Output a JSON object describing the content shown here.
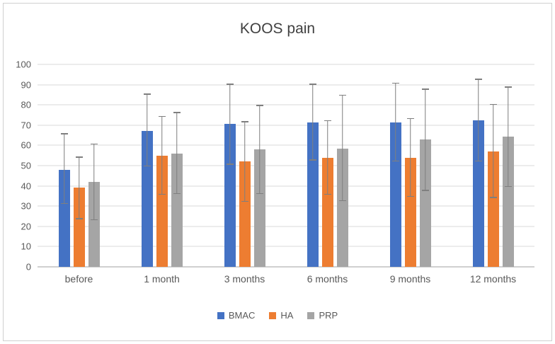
{
  "chart_data": {
    "type": "bar",
    "title": "KOOS pain",
    "xlabel": "",
    "ylabel": "",
    "categories": [
      "before",
      "1 month",
      "3 months",
      "6 months",
      "9 months",
      "12 months"
    ],
    "series": [
      {
        "name": "BMAC",
        "color": "#4472C4",
        "values": [
          48,
          67,
          70.5,
          71.5,
          71.5,
          72.5
        ],
        "error_low": [
          31,
          49.5,
          50.5,
          52.5,
          52,
          52
        ],
        "error_high": [
          66,
          85.5,
          90.5,
          90.5,
          91,
          93
        ]
      },
      {
        "name": "HA",
        "color": "#ED7D31",
        "values": [
          39,
          55,
          52,
          54,
          54,
          57
        ],
        "error_low": [
          23.5,
          35.5,
          32,
          35.5,
          34.5,
          34
        ],
        "error_high": [
          54.5,
          74.5,
          72,
          72.5,
          73.5,
          80.5
        ]
      },
      {
        "name": "PRP",
        "color": "#A5A5A5",
        "values": [
          42,
          56,
          58,
          58.5,
          63,
          64.5
        ],
        "error_low": [
          23,
          36,
          36,
          32.5,
          37.5,
          39.5
        ],
        "error_high": [
          61,
          76.5,
          80,
          85,
          88,
          89
        ]
      }
    ],
    "ylim": [
      0,
      100
    ],
    "ytick_step": 10,
    "grid": true,
    "legend_position": "bottom",
    "error_bar_color": "#7f7f7f",
    "gridline_color": "#d9d9d9"
  }
}
